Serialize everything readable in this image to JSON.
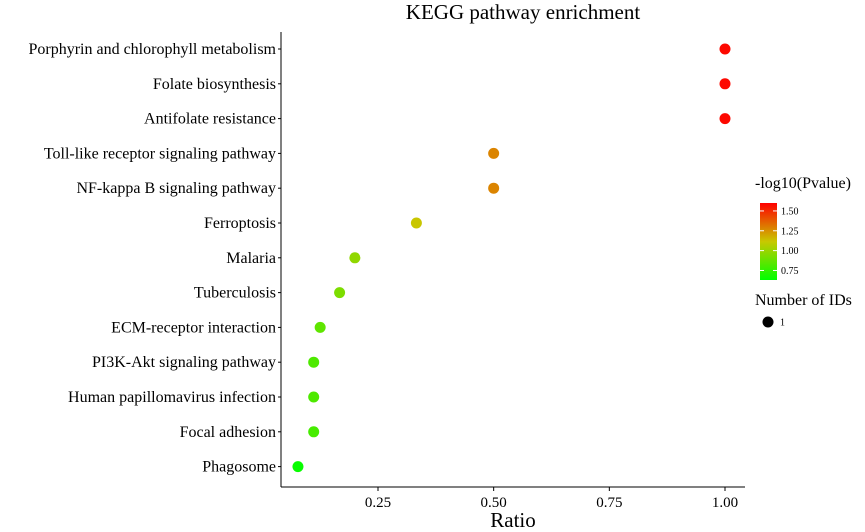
{
  "chart_data": {
    "type": "scatter",
    "title": "KEGG pathway enrichment",
    "xlabel": "Ratio",
    "ylabel": "",
    "xlim": [
      0.05,
      1.02
    ],
    "x_ticks": [
      0.25,
      0.5,
      0.75,
      1.0
    ],
    "x_tick_labels": [
      "0.25",
      "0.50",
      "0.75",
      "1.00"
    ],
    "categories": [
      "Porphyrin and chlorophyll metabolism",
      "Folate biosynthesis",
      "Antifolate resistance",
      "Toll-like receptor signaling pathway",
      "NF-kappa B signaling pathway",
      "Ferroptosis",
      "Malaria",
      "Tuberculosis",
      "ECM-receptor interaction",
      "PI3K-Akt signaling pathway",
      "Human papillomavirus infection",
      "Focal adhesion",
      "Phagosome"
    ],
    "ratio": [
      1.0,
      1.0,
      1.0,
      0.5,
      0.5,
      0.333,
      0.2,
      0.167,
      0.125,
      0.111,
      0.111,
      0.111,
      0.077
    ],
    "neg_log10_pvalue": [
      1.58,
      1.58,
      1.58,
      1.28,
      1.28,
      1.12,
      0.98,
      0.93,
      0.86,
      0.82,
      0.82,
      0.8,
      0.65
    ],
    "number_of_ids": [
      1,
      1,
      1,
      1,
      1,
      1,
      1,
      1,
      1,
      1,
      1,
      1,
      1
    ],
    "color_legend": {
      "title": "-log10(Pvalue)",
      "min": 0.63,
      "max": 1.6,
      "ticks": [
        0.75,
        1.0,
        1.25,
        1.5
      ],
      "tick_labels": [
        "0.75",
        "1.00",
        "1.25",
        "1.50"
      ],
      "low_color": "#00ff00",
      "high_color": "#ff0000"
    },
    "size_legend": {
      "title": "Number of IDs",
      "values": [
        1
      ],
      "labels": [
        "1"
      ]
    }
  }
}
